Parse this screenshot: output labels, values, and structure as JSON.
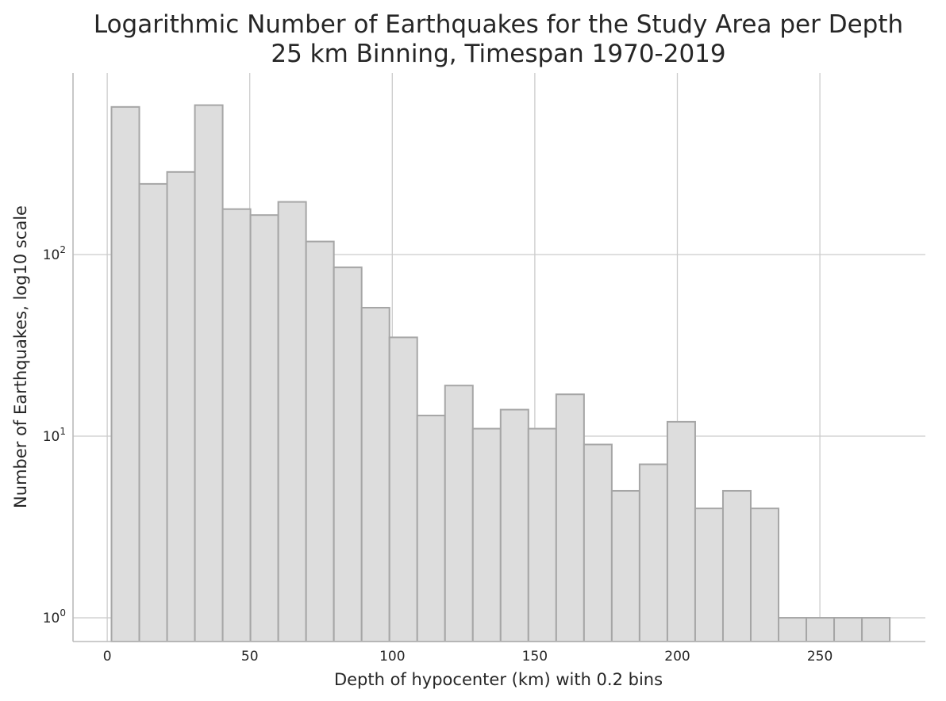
{
  "chart_data": {
    "type": "bar",
    "title": "Logarithmic Number of Earthquakes for the Study Area per Depth",
    "subtitle": "25 km Binning, Timespan 1970-2019",
    "xlabel": "Depth of hypocenter (km) with 0.2 bins",
    "ylabel": "Number of Earthquakes, log10 scale",
    "y_scale": "log10",
    "grid": true,
    "xlim": [
      -12,
      287
    ],
    "ylim": [
      0.74,
      1000
    ],
    "x_ticks": [
      {
        "value": 0,
        "label": "0"
      },
      {
        "value": 50,
        "label": "50"
      },
      {
        "value": 100,
        "label": "100"
      },
      {
        "value": 150,
        "label": "150"
      },
      {
        "value": 200,
        "label": "200"
      },
      {
        "value": 250,
        "label": "250"
      }
    ],
    "y_ticks": [
      {
        "value": 1,
        "base": "10",
        "exp": "0"
      },
      {
        "value": 10,
        "base": "10",
        "exp": "1"
      },
      {
        "value": 100,
        "base": "10",
        "exp": "2"
      }
    ],
    "bins": {
      "edges": [
        1.5,
        11.25,
        21.0,
        30.75,
        40.5,
        50.25,
        60.0,
        69.75,
        79.5,
        89.25,
        99.0,
        108.75,
        118.5,
        128.25,
        138.0,
        147.75,
        157.5,
        167.25,
        177.0,
        186.75,
        196.5,
        206.25,
        216.0,
        225.75,
        235.5,
        245.25,
        255.0,
        264.75,
        274.5
      ],
      "counts": [
        650,
        245,
        285,
        665,
        178,
        165,
        195,
        118,
        85,
        51,
        35,
        13,
        19,
        11,
        14,
        11,
        17,
        9,
        5,
        7,
        12,
        4,
        5,
        4,
        1,
        1,
        1,
        1
      ]
    },
    "colors": {
      "bar_fill": "#dddddd",
      "bar_edge": "#a6a6a6",
      "grid": "#cccccc",
      "text": "#262626"
    }
  }
}
